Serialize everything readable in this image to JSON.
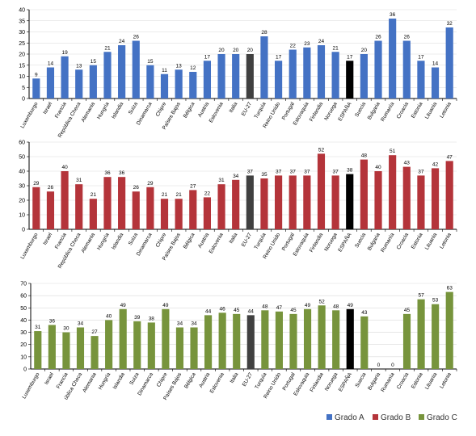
{
  "countries": [
    "Luxemburgo",
    "Israel",
    "Francia",
    "República Checa",
    "Alemania",
    "Hungría",
    "Islandia",
    "Suiza",
    "Dinamarca",
    "Chipre",
    "Países Bajos",
    "Bélgica",
    "Austria",
    "Eslovenia",
    "Italia",
    "EU-27",
    "Turquía",
    "Reino Unido",
    "Portugal",
    "Eslovaquia",
    "Finlandia",
    "Noruega",
    "ESPAÑA",
    "Suecia",
    "Bulgaria",
    "Rumanía",
    "Croacia",
    "Estonia",
    "Lituania",
    "Letonia"
  ],
  "countries_c": [
    "Luxemburgo",
    "Israel",
    "Francia",
    "ública Checa",
    "Alemania",
    "Hungría",
    "Islandia",
    "Suiza",
    "Dinamarca",
    "Chipre",
    "Países Bajos",
    "Bélgica",
    "Austria",
    "Eslovenia",
    "Italia",
    "EU-27",
    "Turquía",
    "Reino Unido",
    "Portugal",
    "Eslovaquia",
    "Finlandia",
    "Noruega",
    "ESPAÑA",
    "Suecia",
    "Bulgaria",
    "Rumanía",
    "Croacia",
    "Estonia",
    "Lituania",
    "Letonia"
  ],
  "colors": {
    "A": "#4472c4",
    "B": "#b4343a",
    "C": "#77943c",
    "eu": "#404040",
    "spain": "#000000"
  },
  "legend": [
    {
      "key": "A",
      "label": "Grado A"
    },
    {
      "key": "B",
      "label": "Grado B"
    },
    {
      "key": "C",
      "label": "Grado C"
    }
  ],
  "chart_data": [
    {
      "type": "bar",
      "series_key": "A",
      "ylim": [
        0,
        40
      ],
      "yticks": [
        0,
        5,
        10,
        15,
        20,
        25,
        30,
        35,
        40
      ],
      "values": [
        9,
        14,
        19,
        13,
        15,
        21,
        24,
        26,
        15,
        11,
        13,
        12,
        17,
        20,
        20,
        20,
        28,
        17,
        22,
        23,
        24,
        21,
        17,
        20,
        26,
        36,
        26,
        17,
        14,
        32
      ],
      "value_labels": [
        "9",
        "14",
        "19",
        "13",
        "15",
        "21",
        "24",
        "26",
        "15",
        "11",
        "13",
        "12",
        "17",
        "20",
        "20",
        "20",
        "28",
        "17",
        "22",
        "23",
        "24",
        "21",
        "17",
        "20",
        "26",
        "36",
        "26",
        "17",
        "14",
        "32"
      ]
    },
    {
      "type": "bar",
      "series_key": "B",
      "ylim": [
        0,
        60
      ],
      "yticks": [
        0,
        10,
        20,
        30,
        40,
        50,
        60
      ],
      "values": [
        29,
        26,
        40,
        31,
        21,
        36,
        36,
        26,
        29,
        21,
        21,
        27,
        22,
        31,
        34,
        37,
        35,
        37,
        37,
        37,
        52,
        37,
        38,
        48,
        40,
        51,
        43,
        37,
        42,
        47
      ],
      "value_labels": [
        "29",
        "26",
        "40",
        "31",
        "21",
        "36",
        "36",
        "26",
        "29",
        "21",
        "21",
        "27",
        "22",
        "31",
        "34",
        "37",
        "35",
        "37",
        "37",
        "37",
        "52",
        "37",
        "38",
        "48",
        "40",
        "51",
        "43",
        "37",
        "42",
        "47"
      ]
    },
    {
      "type": "bar",
      "series_key": "C",
      "ylim": [
        0,
        70
      ],
      "yticks": [
        0,
        10,
        20,
        30,
        40,
        50,
        60,
        70
      ],
      "values": [
        31,
        36,
        30,
        34,
        27,
        40,
        49,
        39,
        38,
        49,
        34,
        34,
        44,
        46,
        45,
        44,
        48,
        47,
        45,
        49,
        52,
        48,
        49,
        43,
        0,
        0,
        45,
        57,
        53,
        63
      ],
      "value_labels": [
        "31",
        "36",
        "30",
        "34",
        "27",
        "40",
        "49",
        "39",
        "38",
        "49",
        "34",
        "34",
        "44",
        "46",
        "45",
        "44",
        "48",
        "47",
        "45",
        "49",
        "52",
        "48",
        "49",
        "43",
        "0",
        "0",
        "45",
        "57",
        "53",
        "63"
      ]
    }
  ]
}
